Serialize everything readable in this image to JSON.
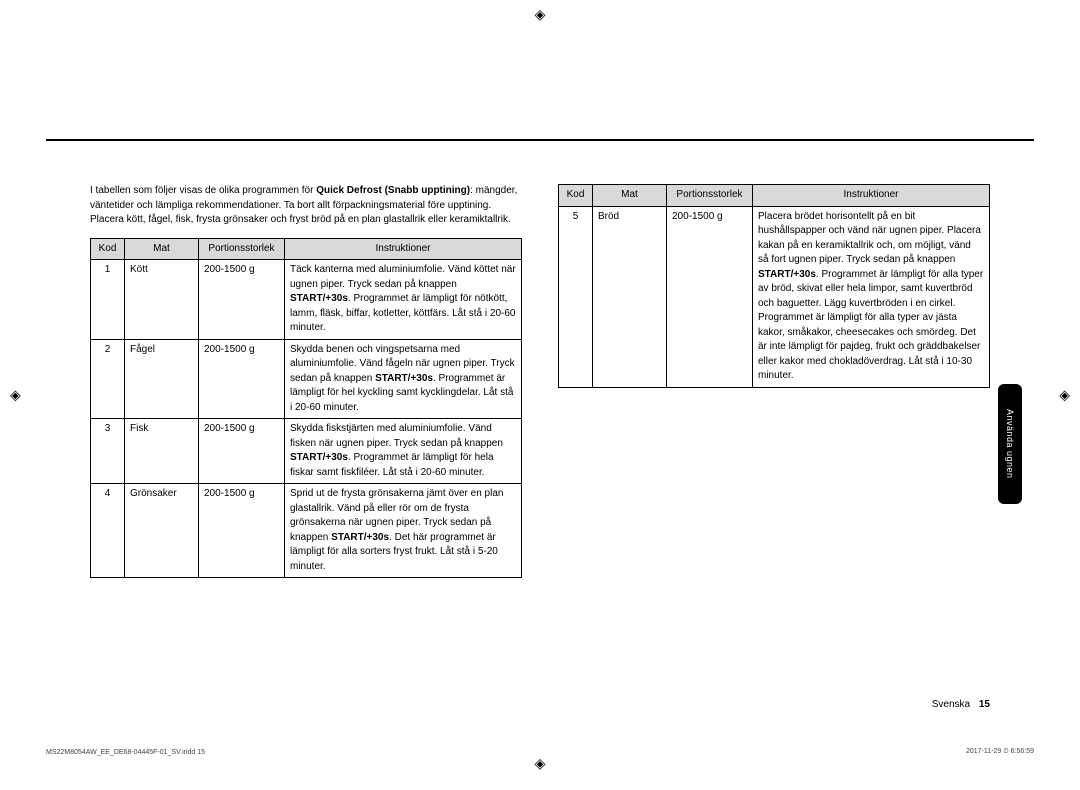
{
  "crop_mark_glyph": "◈",
  "intro": {
    "prefix": "I tabellen som följer visas de olika programmen för ",
    "bold": "Quick Defrost (Snabb upptining)",
    "suffix": ": mängder, väntetider och lämpliga rekommendationer. Ta bort allt förpackningsmaterial före upptining. Placera kött, fågel, fisk, frysta grönsaker och fryst bröd på en plan glastallrik eller keramiktallrik."
  },
  "headers": {
    "kod": "Kod",
    "mat": "Mat",
    "portion": "Portionsstorlek",
    "instr": "Instruktioner"
  },
  "left_rows": [
    {
      "kod": "1",
      "mat": "Kött",
      "portion": "200-1500 g",
      "instr_pre": "Täck kanterna med aluminiumfolie. Vänd köttet när ugnen piper. Tryck sedan på knappen ",
      "instr_bold": "START/+30s",
      "instr_post": ". Programmet är lämpligt för nötkött, lamm, fläsk, biffar, kotletter, köttfärs. Låt stå i 20-60 minuter."
    },
    {
      "kod": "2",
      "mat": "Fågel",
      "portion": "200-1500 g",
      "instr_pre": "Skydda benen och vingspetsarna med aluminiumfolie. Vänd fågeln när ugnen piper. Tryck sedan på knappen ",
      "instr_bold": "START/+30s",
      "instr_post": ". Programmet är lämpligt för hel kyckling samt kycklingdelar. Låt stå i 20-60 minuter."
    },
    {
      "kod": "3",
      "mat": "Fisk",
      "portion": "200-1500 g",
      "instr_pre": "Skydda fiskstjärten med aluminiumfolie. Vänd fisken när ugnen piper. Tryck sedan på knappen ",
      "instr_bold": "START/+30s",
      "instr_post": ". Programmet är lämpligt för hela fiskar samt fiskfiléer. Låt stå i 20-60 minuter."
    },
    {
      "kod": "4",
      "mat": "Grönsaker",
      "portion": "200-1500 g",
      "instr_pre": "Sprid ut de frysta grönsakerna jämt över en plan glastallrik. Vänd på eller rör om de frysta grönsakerna när ugnen piper. Tryck sedan på knappen ",
      "instr_bold": "START/+30s",
      "instr_post": ". Det här programmet är lämpligt för alla sorters fryst frukt. Låt stå i 5-20 minuter."
    }
  ],
  "right_rows": [
    {
      "kod": "5",
      "mat": "Bröd",
      "portion": "200-1500 g",
      "instr_pre": "Placera brödet horisontellt på en bit hushållspapper och vänd när ugnen piper. Placera kakan på en keramiktallrik och, om möjligt, vänd så fort ugnen piper. Tryck sedan på knappen ",
      "instr_bold": "START/+30s",
      "instr_post": ". Programmet är lämpligt för alla typer av bröd, skivat eller hela limpor, samt kuvertbröd och baguetter. Lägg kuvertbröden i en cirkel. Programmet är lämpligt för alla typer av jästa kakor, småkakor, cheesecakes och smördeg. Det är inte lämpligt för pajdeg, frukt och gräddbakelser eller kakor med chokladöverdrag. Låt stå i 10-30 minuter."
    }
  ],
  "side_tab": "Använda ugnen",
  "footer": {
    "lang": "Svenska",
    "page": "15",
    "file": "MS22M8054AW_EE_DE68-04445F-01_SV.indd   15",
    "date": "2017-11-29   ⏲ 6:56:59"
  }
}
